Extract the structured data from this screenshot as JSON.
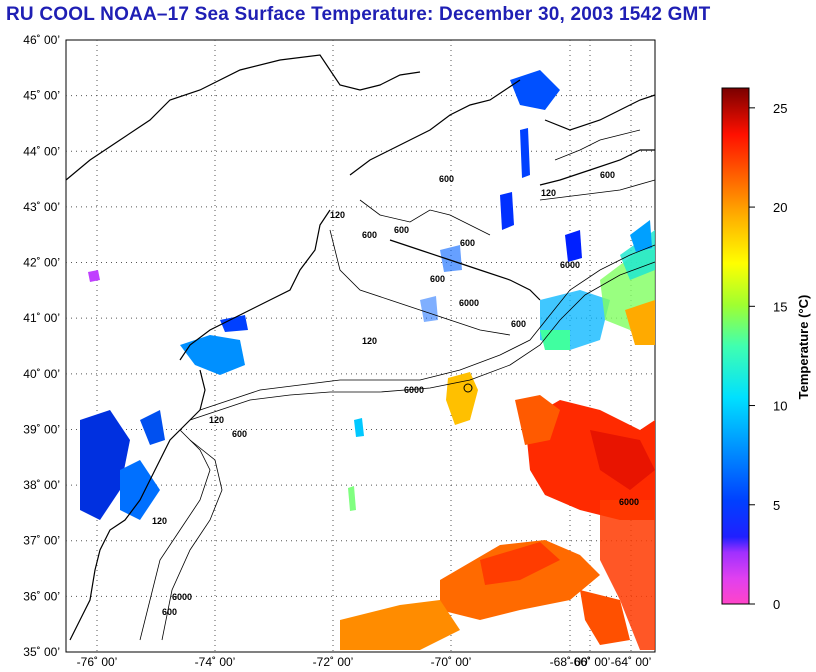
{
  "title": "RU COOL  NOAA–17  Sea Surface Temperature:  December 30, 2003 1542 GMT",
  "map": {
    "lat_labels": [
      "46˚ 00’",
      "45˚ 00’",
      "44˚ 00’",
      "43˚ 00’",
      "42˚ 00’",
      "41˚ 00’",
      "40˚ 00’",
      "39˚ 00’",
      "38˚ 00’",
      "37˚ 00’",
      "36˚ 00’",
      "35˚ 00’"
    ],
    "lon_labels": [
      "-76˚ 00’",
      "-74˚ 00’",
      "-72˚ 00’",
      "-70˚ 00’",
      "-68˚ 00’",
      "-66˚ 00’",
      "-64˚ 00’"
    ],
    "contour_labels": [
      "600",
      "120",
      "6000",
      "600",
      "600",
      "600",
      "120",
      "6000",
      "600",
      "6000",
      "600",
      "120",
      "600",
      "600",
      "120",
      "6000",
      "120",
      "600",
      "6000"
    ]
  },
  "colorbar": {
    "title": "Temperature (°C)",
    "tick_labels": [
      "25",
      "20",
      "15",
      "10",
      "5",
      "0"
    ],
    "range": [
      0,
      26
    ],
    "colors": [
      "#ff44c8",
      "#c83cff",
      "#6a2ce6",
      "#0020ff",
      "#0060ff",
      "#00a8ff",
      "#00e6ff",
      "#3cffc0",
      "#a0ff40",
      "#ffff00",
      "#ffb400",
      "#ff6400",
      "#ff1a00",
      "#c00000",
      "#800000"
    ]
  }
}
